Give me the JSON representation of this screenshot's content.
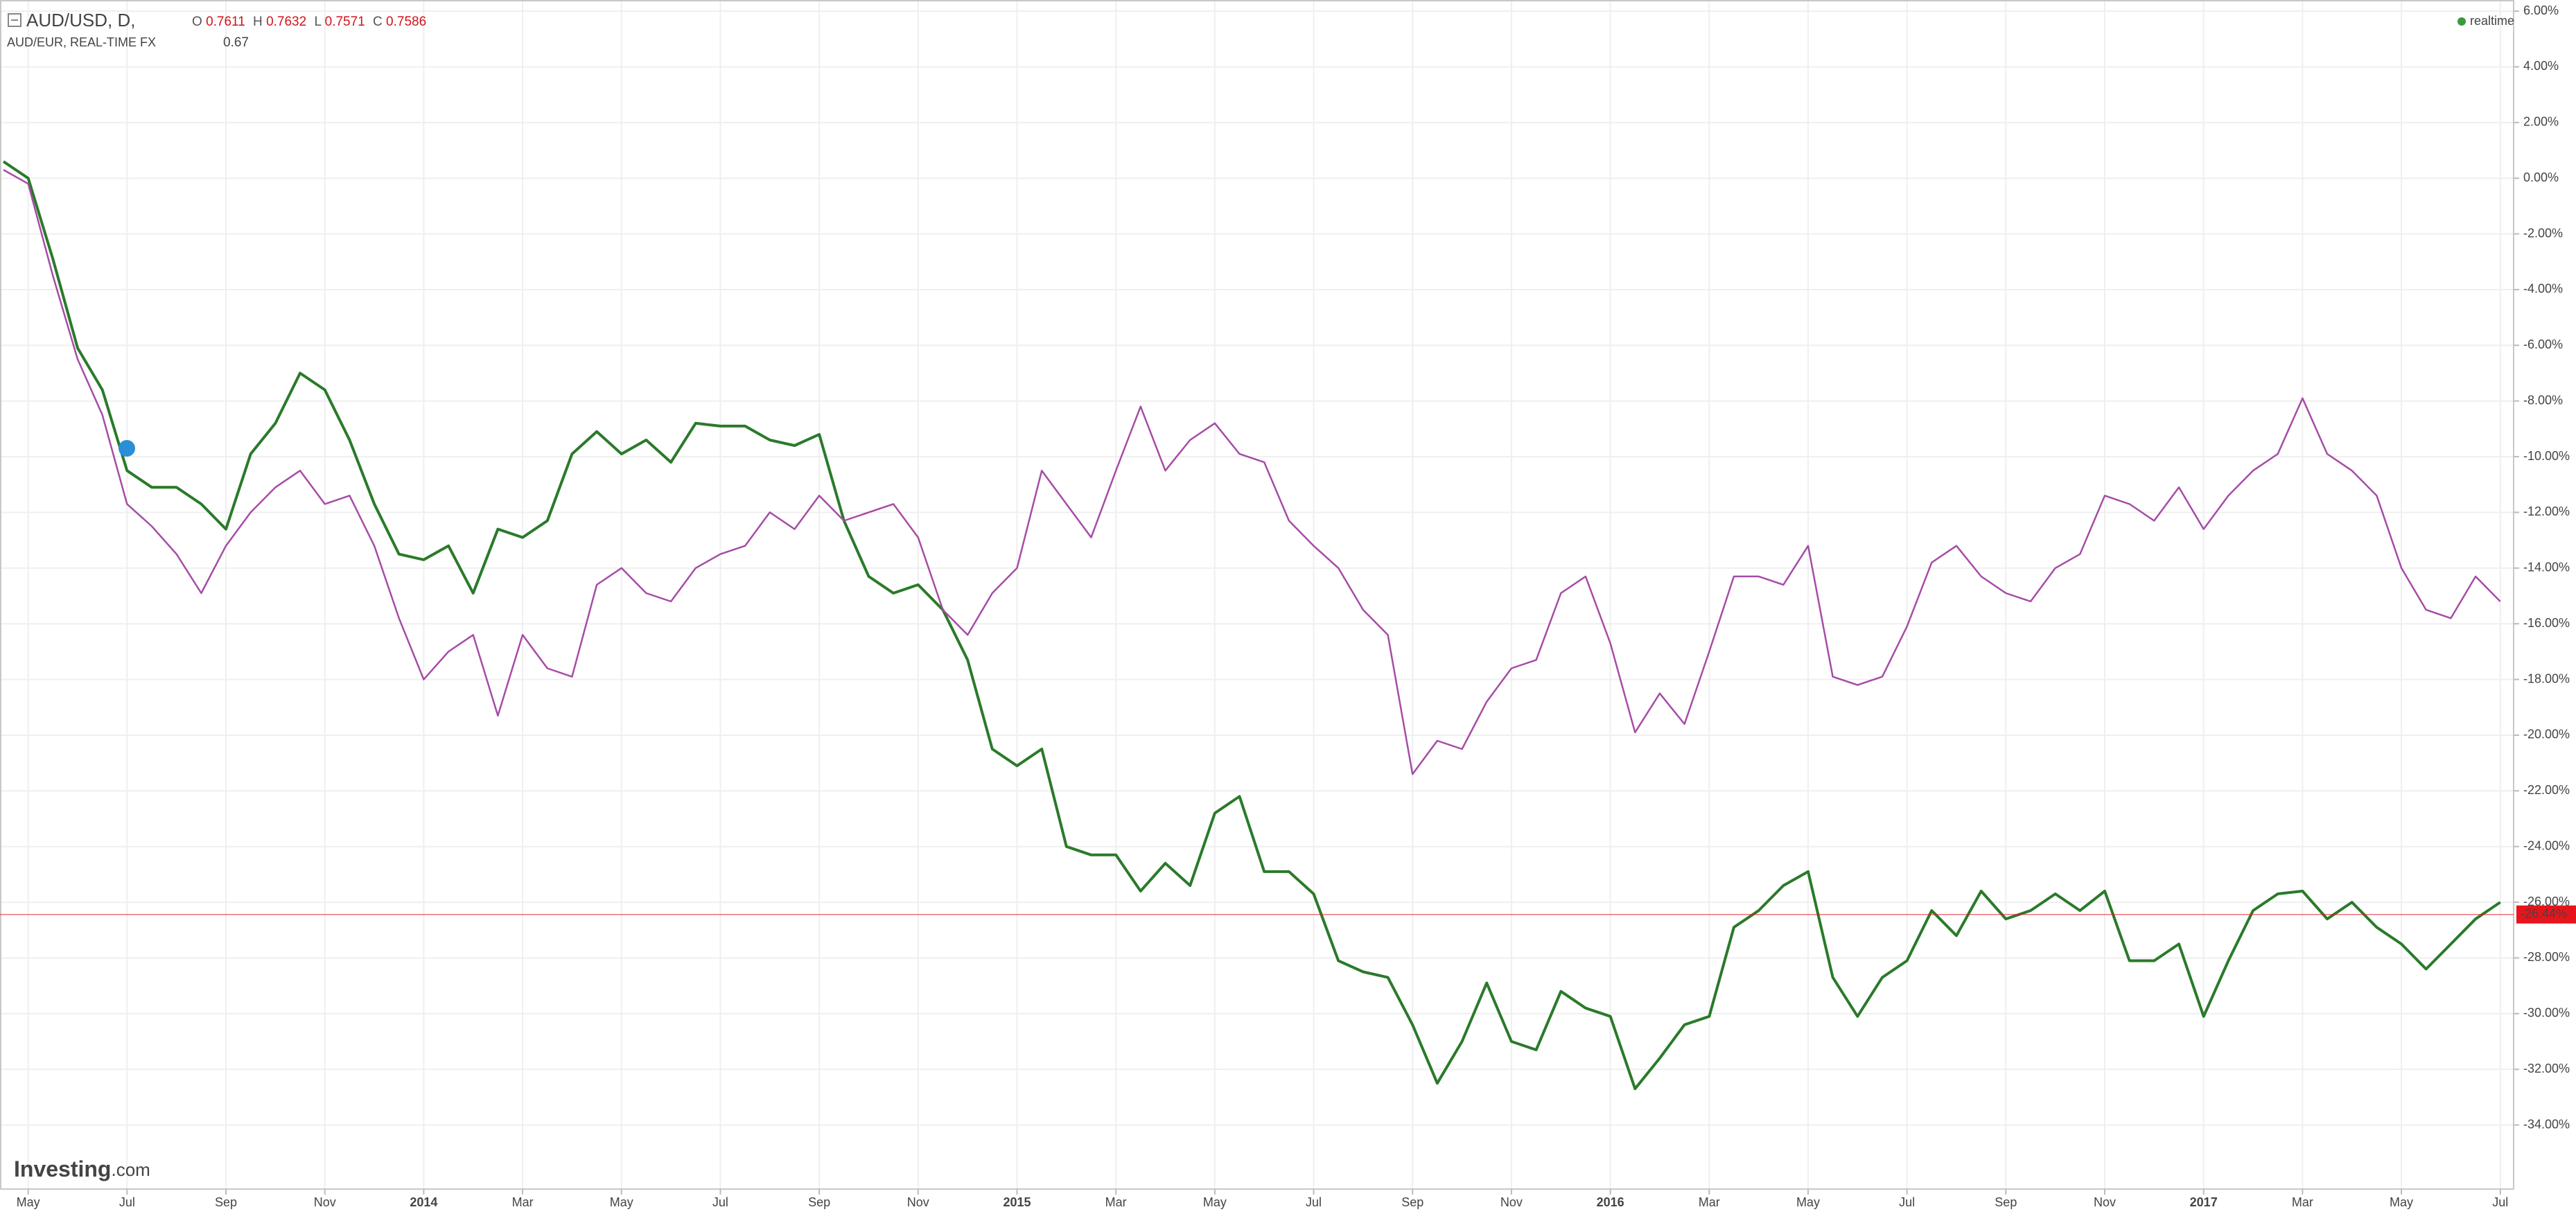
{
  "chart_data": {
    "type": "line",
    "header": {
      "symbol": "AUD/USD, D,",
      "o_label": "O",
      "o": "0.7611",
      "h_label": "H",
      "h": "0.7632",
      "l_label": "L",
      "l": "0.7571",
      "c_label": "C",
      "c": "0.7586",
      "compare": "AUD/EUR, REAL-TIME FX",
      "compare_value": "0.67",
      "status": "realtime",
      "brand": "Investing",
      "brand_suffix": ".com"
    },
    "x": [
      -0.5,
      0,
      0.5,
      1,
      1.5,
      2,
      2.5,
      3,
      3.5,
      4,
      4.5,
      5,
      5.5,
      6,
      6.5,
      7,
      7.5,
      8,
      8.5,
      9,
      9.5,
      10,
      10.5,
      11,
      11.5,
      12,
      12.5,
      13,
      13.5,
      14,
      14.5,
      15,
      15.5,
      16,
      16.5,
      17,
      17.5,
      18,
      18.5,
      19,
      19.5,
      20,
      20.5,
      21,
      21.5,
      22,
      22.5,
      23,
      23.5,
      24,
      24.5,
      25,
      25.5,
      26,
      26.5,
      27,
      27.5,
      28,
      28.5,
      29,
      29.5,
      30,
      30.5,
      31,
      31.5,
      32,
      32.5,
      33,
      33.5,
      34,
      34.5,
      35,
      35.5,
      36,
      36.5,
      37,
      37.5,
      38,
      38.5,
      39,
      39.5,
      40,
      40.5,
      41,
      41.5,
      42,
      42.5,
      43,
      43.5,
      44,
      44.5,
      45,
      45.5,
      46,
      46.5,
      47,
      47.5,
      48,
      48.5,
      49,
      49.5,
      50
    ],
    "series": [
      {
        "name": "AUD/USD",
        "color": "#2a7a2a",
        "values": [
          0.6,
          0,
          -2.9,
          -6.1,
          -7.6,
          -10.5,
          -11.1,
          -11.1,
          -11.7,
          -12.6,
          -9.9,
          -8.8,
          -7.0,
          -7.6,
          -9.4,
          -11.7,
          -13.5,
          -13.7,
          -13.2,
          -14.9,
          -12.6,
          -12.9,
          -12.3,
          -9.9,
          -9.1,
          -9.9,
          -9.4,
          -10.2,
          -8.8,
          -8.9,
          -8.9,
          -9.4,
          -9.6,
          -9.2,
          -12.3,
          -14.3,
          -14.9,
          -14.6,
          -15.5,
          -17.3,
          -20.5,
          -21.1,
          -20.5,
          -24.0,
          -24.3,
          -24.3,
          -25.6,
          -24.6,
          -25.4,
          -22.8,
          -22.2,
          -24.9,
          -24.9,
          -25.7,
          -28.1,
          -28.5,
          -28.7,
          -30.4,
          -32.5,
          -31.0,
          -28.9,
          -31.0,
          -31.3,
          -29.2,
          -29.8,
          -30.1,
          -32.7,
          -31.6,
          -30.4,
          -30.1,
          -26.9,
          -26.3,
          -25.4,
          -24.9,
          -28.7,
          -30.1,
          -28.7,
          -28.1,
          -26.3,
          -27.2,
          -25.6,
          -26.6,
          -26.3,
          -25.7,
          -26.3,
          -25.6,
          -28.1,
          -28.1,
          -27.5,
          -30.1,
          -28.1,
          -26.3,
          -25.7,
          -25.6,
          -26.6,
          -26.0,
          -26.9,
          -27.5,
          -28.4,
          -27.5,
          -26.6,
          -26.0
        ]
      },
      {
        "name": "AUD/EUR",
        "color": "#a64ca6",
        "values": [
          0.3,
          -0.2,
          -3.5,
          -6.5,
          -8.5,
          -11.7,
          -12.5,
          -13.5,
          -14.9,
          -13.2,
          -12.0,
          -11.1,
          -10.5,
          -11.7,
          -11.4,
          -13.2,
          -15.8,
          -18.0,
          -17.0,
          -16.4,
          -19.3,
          -16.4,
          -17.6,
          -17.9,
          -14.6,
          -14.0,
          -14.9,
          -15.2,
          -14.0,
          -13.5,
          -13.2,
          -12.0,
          -12.6,
          -11.4,
          -12.3,
          -12.0,
          -11.7,
          -12.9,
          -15.5,
          -16.4,
          -14.9,
          -14.0,
          -10.5,
          -11.7,
          -12.9,
          -10.5,
          -8.2,
          -10.5,
          -9.4,
          -8.8,
          -9.9,
          -10.2,
          -12.3,
          -13.2,
          -14.0,
          -15.5,
          -16.4,
          -21.4,
          -20.2,
          -20.5,
          -18.8,
          -17.6,
          -17.3,
          -14.9,
          -14.3,
          -16.7,
          -19.9,
          -18.5,
          -19.6,
          -17.0,
          -14.3,
          -14.3,
          -14.6,
          -13.2,
          -17.9,
          -18.2,
          -17.9,
          -16.1,
          -13.8,
          -13.2,
          -14.3,
          -14.9,
          -15.2,
          -14.0,
          -13.5,
          -11.4,
          -11.7,
          -12.3,
          -11.1,
          -12.6,
          -11.4,
          -10.5,
          -9.9,
          -7.9,
          -9.9,
          -10.5,
          -11.4,
          -14.0,
          -15.5,
          -15.8,
          -14.3,
          -15.2
        ]
      }
    ],
    "current": {
      "value": -26.44,
      "label": "-26.44%",
      "color": "#e8141c"
    },
    "xlim": [
      -0.57,
      50.27
    ],
    "ylim": [
      -36.3,
      6.4
    ],
    "xticks": [
      {
        "value": 0,
        "label": "May"
      },
      {
        "value": 2,
        "label": "Jul"
      },
      {
        "value": 4,
        "label": "Sep"
      },
      {
        "value": 6,
        "label": "Nov"
      },
      {
        "value": 8,
        "label": "2014"
      },
      {
        "value": 10,
        "label": "Mar"
      },
      {
        "value": 12,
        "label": "May"
      },
      {
        "value": 14,
        "label": "Jul"
      },
      {
        "value": 16,
        "label": "Sep"
      },
      {
        "value": 18,
        "label": "Nov"
      },
      {
        "value": 20,
        "label": "2015"
      },
      {
        "value": 22,
        "label": "Mar"
      },
      {
        "value": 24,
        "label": "May"
      },
      {
        "value": 26,
        "label": "Jul"
      },
      {
        "value": 28,
        "label": "Sep"
      },
      {
        "value": 30,
        "label": "Nov"
      },
      {
        "value": 32,
        "label": "2016"
      },
      {
        "value": 34,
        "label": "Mar"
      },
      {
        "value": 36,
        "label": "May"
      },
      {
        "value": 38,
        "label": "Jul"
      },
      {
        "value": 40,
        "label": "Sep"
      },
      {
        "value": 42,
        "label": "Nov"
      },
      {
        "value": 44,
        "label": "2017"
      },
      {
        "value": 46,
        "label": "Mar"
      },
      {
        "value": 48,
        "label": "May"
      },
      {
        "value": 50,
        "label": "Jul"
      }
    ],
    "yticks": [
      {
        "value": 6,
        "label": "6.00%"
      },
      {
        "value": 4,
        "label": "4.00%"
      },
      {
        "value": 2,
        "label": "2.00%"
      },
      {
        "value": 0,
        "label": "0.00%"
      },
      {
        "value": -2,
        "label": "-2.00%"
      },
      {
        "value": -4,
        "label": "-4.00%"
      },
      {
        "value": -6,
        "label": "-6.00%"
      },
      {
        "value": -8,
        "label": "-8.00%"
      },
      {
        "value": -10,
        "label": "-10.00%"
      },
      {
        "value": -12,
        "label": "-12.00%"
      },
      {
        "value": -14,
        "label": "-14.00%"
      },
      {
        "value": -16,
        "label": "-16.00%"
      },
      {
        "value": -18,
        "label": "-18.00%"
      },
      {
        "value": -20,
        "label": "-20.00%"
      },
      {
        "value": -22,
        "label": "-22.00%"
      },
      {
        "value": -24,
        "label": "-24.00%"
      },
      {
        "value": -26,
        "label": "-26.00%"
      },
      {
        "value": -28,
        "label": "-28.00%"
      },
      {
        "value": -30,
        "label": "-30.00%"
      },
      {
        "value": -32,
        "label": "-32.00%"
      },
      {
        "value": -34,
        "label": "-34.00%"
      }
    ],
    "grid": true
  }
}
